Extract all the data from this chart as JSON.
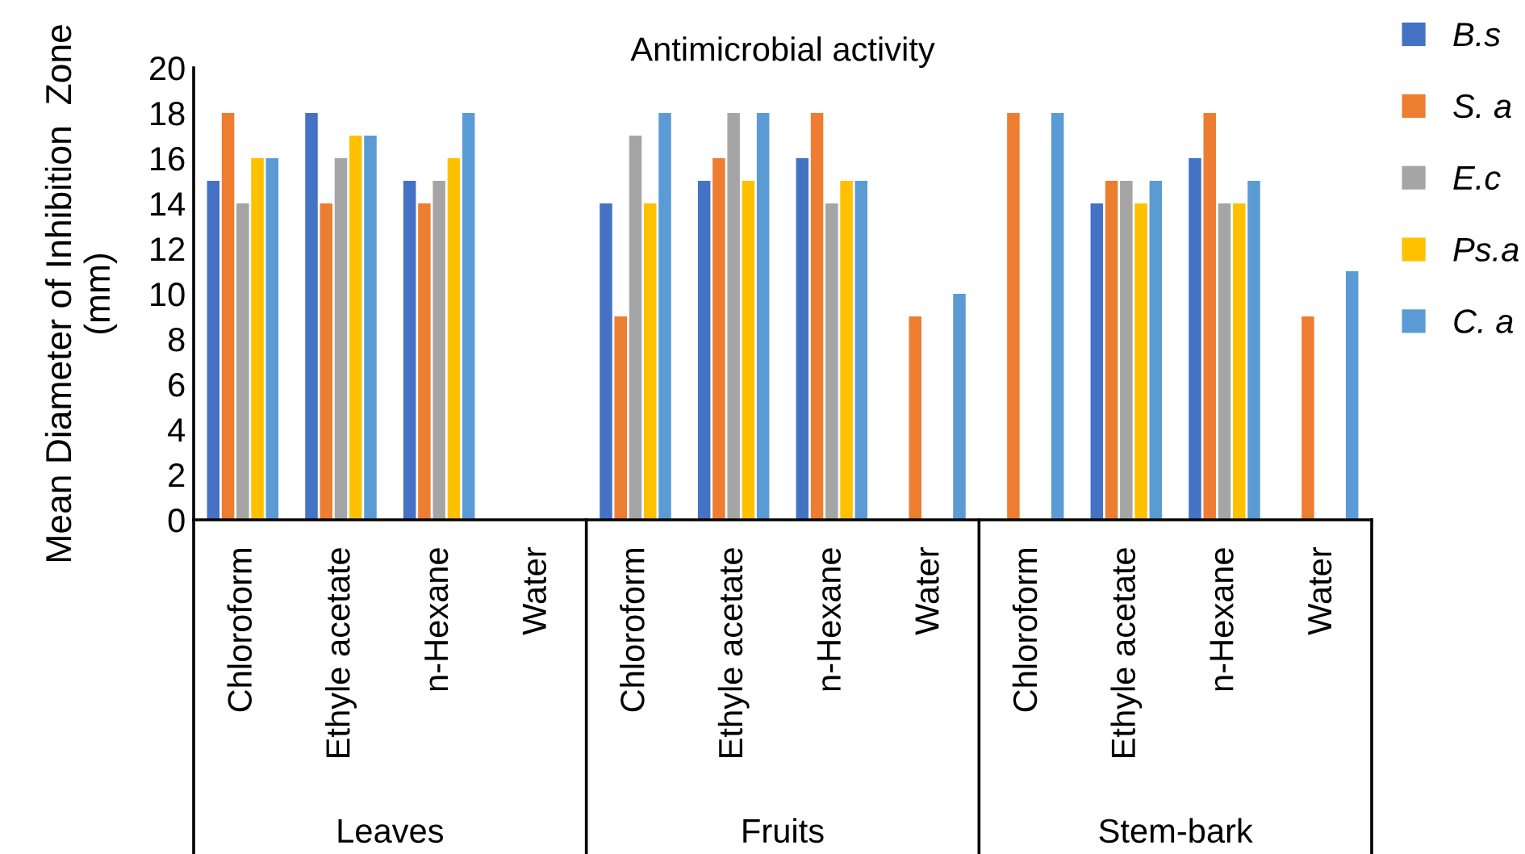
{
  "chart_data": {
    "type": "bar",
    "title": "Antimicrobial activity",
    "ylabel": "Mean Diameter of Inhibition  Zone\n(mm)",
    "categories": [
      "Chloroform",
      "Ethyle acetate",
      "n-Hexane",
      "Water",
      "Chloroform",
      "Ethyle acetate",
      "n-Hexane",
      "Water",
      "Chloroform",
      "Ethyle acetate",
      "n-Hexane",
      "Water"
    ],
    "annotations": [
      "Leaves",
      "Fruits",
      "Stem-bark"
    ],
    "series": [
      {
        "name": "B.s",
        "color": "#4472c4",
        "values": [
          15,
          18,
          15,
          null,
          14,
          15,
          16,
          null,
          null,
          14,
          16,
          null
        ]
      },
      {
        "name": "S. a",
        "color": "#ed7d31",
        "values": [
          18,
          14,
          14,
          null,
          9,
          16,
          18,
          9,
          18,
          15,
          18,
          9
        ]
      },
      {
        "name": "E.c",
        "color": "#a5a5a5",
        "values": [
          14,
          16,
          15,
          null,
          17,
          18,
          14,
          null,
          null,
          15,
          14,
          null
        ]
      },
      {
        "name": "Ps.a",
        "color": "#ffc000",
        "values": [
          16,
          17,
          16,
          null,
          14,
          15,
          15,
          null,
          null,
          14,
          14,
          null
        ]
      },
      {
        "name": "C. a",
        "color": "#5b9bd5",
        "values": [
          16,
          17,
          18,
          null,
          18,
          18,
          15,
          10,
          18,
          15,
          15,
          11
        ]
      }
    ],
    "ylim": [
      0,
      20
    ],
    "yticks": [
      0,
      2,
      4,
      6,
      8,
      10,
      12,
      14,
      16,
      18,
      20
    ],
    "legend": "right",
    "grid": false
  }
}
